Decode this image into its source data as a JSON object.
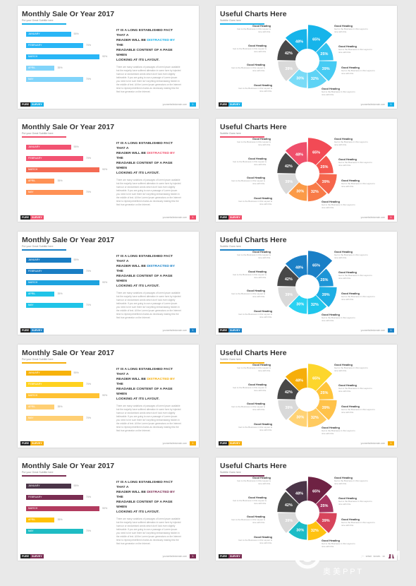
{
  "watermark": {
    "main": "GFXAA.COM",
    "sub": "奥 美 P P T"
  },
  "shared": {
    "sale_title": "Monthly Sale Or Year 2017",
    "sale_subtitle": "Put your Great Subtitle here",
    "chart_title": "Useful Charts Here",
    "chart_subtitle": "Subtitle Goes here",
    "para_line1": "IT IS A LONG ESTABLISHED FACT THAT A",
    "para_line2_pre": "READER WILL BE",
    "para_line2_em": "DISTRACTED BY",
    "para_line2_post": "THE",
    "para_line3": "READABLE CONTENT OF A PAGE WHEN",
    "para_line4": "LOOKING AT ITS LAYOUT.",
    "para_body": "There are many variations of passages of lorem Ipsum available but the majority have suffered alteration in some form by injected humour or randomised words which don't look even slightly believable. If you are going to use a passage of Lorem Ipsum you need to be sure there isn't anything embarrassing hidden in the middle of text. All the Lorem Ipsum generators on the Internet tend to repeat predefined chunks as necessary making this the first true generator on the Internet.",
    "brand_a": "PURE",
    "brand_b": "SURVEY",
    "url": "yourwebsitedomain.com",
    "page": "1",
    "heading": "Good Heading",
    "heading_desc": "Get to the Business in this Layout is nice with this.",
    "months": [
      {
        "label": "JANUARY",
        "pct": "55%",
        "value": 55
      },
      {
        "label": "FEBRUARY",
        "pct": "70%",
        "value": 70
      },
      {
        "label": "MARCH",
        "pct": "90%",
        "value": 90
      },
      {
        "label": "APRIL",
        "pct": "35%",
        "value": 35
      },
      {
        "label": "MAY",
        "pct": "70%",
        "value": 70
      }
    ],
    "segments": [
      {
        "label": "65%",
        "value": 65
      },
      {
        "label": "25%",
        "value": 25
      },
      {
        "label": "39%",
        "value": 39
      },
      {
        "label": "32%",
        "value": 32
      },
      {
        "label": "30%",
        "value": 30
      },
      {
        "label": "39%",
        "value": 39
      },
      {
        "label": "42%",
        "value": 42
      },
      {
        "label": "48%",
        "value": 48
      }
    ]
  },
  "themes": [
    {
      "name": "blue",
      "accent": "#17b0e8",
      "bar_colors": [
        "#29b6f6",
        "#29b6f6",
        "#29b6f6",
        "#81d4fa",
        "#81d4fa"
      ],
      "seg_colors": [
        "#16b4ea",
        "#33c3f0",
        "#46cbf3",
        "#5ed3f5",
        "#79dbf7",
        "#d9d9d9",
        "#484848",
        "#16b4ea"
      ]
    },
    {
      "name": "red",
      "accent": "#ef4f6b",
      "bar_colors": [
        "#f25372",
        "#f25372",
        "#f46b54",
        "#ff9155",
        "#ff9155"
      ],
      "seg_colors": [
        "#f24a55",
        "#f4574f",
        "#f5664c",
        "#f87b48",
        "#fb9a47",
        "#d9d9d9",
        "#484848",
        "#ef4f6b"
      ]
    },
    {
      "name": "teal",
      "accent": "#1b82c7",
      "bar_colors": [
        "#1a7ec4",
        "#1a7ec4",
        "#1da3df",
        "#20c4e8",
        "#20c4e8"
      ],
      "seg_colors": [
        "#1a7fc6",
        "#1d95d6",
        "#1eaee4",
        "#1fc6ec",
        "#2bd2f2",
        "#d9d9d9",
        "#484848",
        "#1a7fc6"
      ]
    },
    {
      "name": "yellow",
      "accent": "#f6ae0a",
      "bar_colors": [
        "#f7b30b",
        "#ffd21f",
        "#ffc233",
        "#ffcf73",
        "#ffcf73"
      ],
      "seg_colors": [
        "#fdd62c",
        "#ffc43a",
        "#ffc24a",
        "#ffca5f",
        "#ffd274",
        "#d9d9d9",
        "#484848",
        "#f6ae0a"
      ]
    },
    {
      "name": "multi",
      "accent": "#7a2d52",
      "bar_colors": [
        "#4b3548",
        "#7a2d52",
        "#b23b5f",
        "#ffc107",
        "#1ebcc4"
      ],
      "seg_colors": [
        "#6e2243",
        "#a5345f",
        "#d7445b",
        "#ffc211",
        "#1cbcc6",
        "#d9d9d9",
        "#484848",
        "#4b3548"
      ]
    }
  ]
}
